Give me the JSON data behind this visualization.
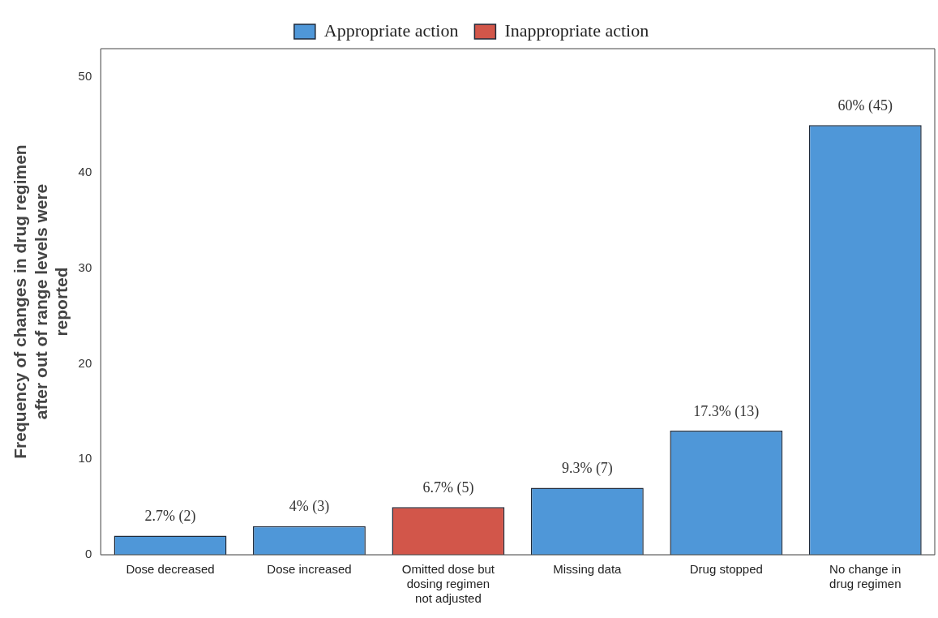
{
  "chart_data": {
    "type": "bar",
    "ylabel": "Frequency of changes in drug regimen after out of range levels were reported",
    "categories": [
      "Dose decreased",
      "Dose increased",
      "Omitted dose but dosing regimen not adjusted",
      "Missing data",
      "Drug stopped",
      "No change in drug regimen"
    ],
    "series": [
      {
        "name": "Appropriate action",
        "color": "#4f97d8",
        "values": [
          2,
          3,
          null,
          7,
          13,
          45
        ],
        "value_labels": [
          "2.7% (2)",
          "4% (3)",
          null,
          "9.3% (7)",
          "17.3% (13)",
          "60% (45)"
        ]
      },
      {
        "name": "Inappropriate action",
        "color": "#d2564a",
        "values": [
          null,
          null,
          5,
          null,
          null,
          null
        ],
        "value_labels": [
          null,
          null,
          "6.7% (5)",
          null,
          null,
          null
        ]
      }
    ],
    "ylim": [
      0,
      53
    ],
    "yticks": [
      0,
      10,
      20,
      30,
      40,
      50
    ],
    "grid": false,
    "legend": "top"
  }
}
